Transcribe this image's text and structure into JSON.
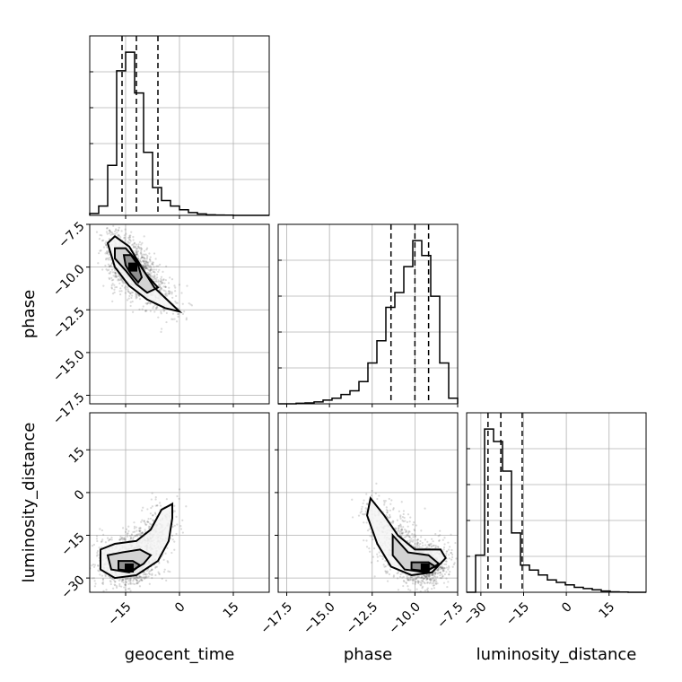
{
  "chart_data": {
    "type": "corner",
    "grid": true,
    "parameters": [
      "geocent_time",
      "phase",
      "luminosity_distance"
    ],
    "ranges": {
      "geocent_time": [
        -25,
        25
      ],
      "phase": [
        -18,
        -7.5
      ],
      "luminosity_distance": [
        -35,
        28
      ]
    },
    "ticks": {
      "geocent_time": [
        -15,
        0,
        15
      ],
      "phase": [
        -17.5,
        -15.0,
        -12.5,
        -10.0,
        -7.5
      ],
      "luminosity_distance": [
        -30,
        -15,
        0,
        15
      ]
    },
    "tick_labels": {
      "geocent_time": [
        "−15",
        "0",
        "15"
      ],
      "phase": [
        "−17.5",
        "−15.0",
        "−12.5",
        "−10.0",
        "−7.5"
      ],
      "luminosity_distance": [
        "−30",
        "−15",
        "0",
        "15"
      ]
    },
    "histograms": [
      {
        "parameter": "geocent_time",
        "bin_edges": [
          -25,
          -22.5,
          -20,
          -17.5,
          -15,
          -12.5,
          -10,
          -7.5,
          -5,
          -2.5,
          0,
          2.5,
          5,
          7.5,
          10,
          12.5,
          15,
          17.5,
          20,
          22.5,
          25
        ],
        "counts": [
          1,
          5,
          27,
          78,
          88,
          66,
          34,
          15,
          8,
          5,
          3,
          1.5,
          0.8,
          0.3,
          0.2,
          0.1,
          0,
          0,
          0,
          0
        ],
        "quantiles": [
          -16,
          -12,
          -6
        ]
      },
      {
        "parameter": "phase",
        "bin_edges": [
          -18,
          -17.475,
          -16.95,
          -16.425,
          -15.9,
          -15.375,
          -14.85,
          -14.325,
          -13.8,
          -13.275,
          -12.75,
          -12.225,
          -11.7,
          -11.175,
          -10.65,
          -10.125,
          -9.6,
          -9.075,
          -8.55,
          -8.025,
          -7.5
        ],
        "counts": [
          0,
          0,
          0.3,
          0.5,
          1,
          2,
          3,
          5,
          7,
          12,
          22,
          34,
          52,
          60,
          74,
          88,
          80,
          58,
          22,
          3
        ],
        "quantiles": [
          -11.4,
          -10.0,
          -9.2
        ]
      },
      {
        "parameter": "luminosity_distance",
        "bin_edges": [
          -35,
          -31.85,
          -28.7,
          -25.55,
          -22.4,
          -19.25,
          -16.1,
          -12.95,
          -9.8,
          -6.65,
          -3.5,
          -0.35,
          2.8,
          5.95,
          9.1,
          12.25,
          15.4,
          18.55,
          21.7,
          24.85,
          28
        ],
        "counts": [
          0,
          15,
          66,
          61,
          49,
          24,
          11,
          9,
          7,
          5,
          4,
          3,
          2,
          1.5,
          1,
          0.5,
          0.2,
          0.1,
          0,
          0
        ],
        "quantiles": [
          -27.5,
          -23,
          -15.5
        ]
      }
    ],
    "correlations": [
      {
        "x": "geocent_time",
        "y": "phase",
        "peak": [
          -13,
          -10.0
        ],
        "contour_outer": [
          [
            -20,
            -8.6
          ],
          [
            -18,
            -8.2
          ],
          [
            -14,
            -8.8
          ],
          [
            -10,
            -10.2
          ],
          [
            -7,
            -11.2
          ],
          [
            -4,
            -11.8
          ],
          [
            0,
            -12.6
          ],
          [
            -4,
            -12.4
          ],
          [
            -9,
            -11.9
          ],
          [
            -14,
            -11.1
          ],
          [
            -18,
            -10.0
          ]
        ],
        "contour_middle": [
          [
            -18,
            -8.9
          ],
          [
            -15,
            -8.9
          ],
          [
            -12,
            -9.6
          ],
          [
            -9,
            -10.5
          ],
          [
            -6,
            -11.2
          ],
          [
            -9,
            -11.5
          ],
          [
            -12,
            -11.0
          ],
          [
            -15,
            -10.2
          ],
          [
            -18,
            -9.5
          ]
        ],
        "contour_inner": [
          [
            -15.5,
            -9.3
          ],
          [
            -13.5,
            -9.3
          ],
          [
            -11.5,
            -9.9
          ],
          [
            -10.5,
            -10.6
          ],
          [
            -11.5,
            -10.9
          ],
          [
            -13.5,
            -10.4
          ],
          [
            -15,
            -9.9
          ]
        ]
      },
      {
        "x": "geocent_time",
        "y": "luminosity_distance",
        "peak": [
          -14,
          -26.5
        ],
        "contour_outer": [
          [
            -22,
            -20
          ],
          [
            -18,
            -18
          ],
          [
            -12,
            -17
          ],
          [
            -8,
            -13
          ],
          [
            -5,
            -6
          ],
          [
            -2,
            -4
          ],
          [
            -2,
            -9
          ],
          [
            -3,
            -17
          ],
          [
            -6,
            -24
          ],
          [
            -12,
            -29
          ],
          [
            -18,
            -30
          ],
          [
            -22,
            -27
          ]
        ],
        "contour_middle": [
          [
            -20,
            -22
          ],
          [
            -16,
            -21
          ],
          [
            -11,
            -20
          ],
          [
            -8,
            -22
          ],
          [
            -10,
            -25
          ],
          [
            -14,
            -28
          ],
          [
            -19,
            -27
          ]
        ],
        "contour_inner": [
          [
            -17,
            -24
          ],
          [
            -13,
            -24
          ],
          [
            -11,
            -25.5
          ],
          [
            -13,
            -27.5
          ],
          [
            -17,
            -27
          ]
        ]
      },
      {
        "x": "phase",
        "y": "luminosity_distance",
        "peak": [
          -9.4,
          -26.5
        ],
        "contour_outer": [
          [
            -12.6,
            -2
          ],
          [
            -11.8,
            -8
          ],
          [
            -11,
            -15
          ],
          [
            -10,
            -20
          ],
          [
            -8.5,
            -20
          ],
          [
            -8.2,
            -23
          ],
          [
            -9,
            -28
          ],
          [
            -10.2,
            -29
          ],
          [
            -11.4,
            -26
          ],
          [
            -12.2,
            -18
          ],
          [
            -12.8,
            -8
          ]
        ],
        "contour_middle": [
          [
            -11.3,
            -15
          ],
          [
            -10.4,
            -21
          ],
          [
            -9.2,
            -22
          ],
          [
            -8.6,
            -25
          ],
          [
            -9.4,
            -28
          ],
          [
            -10.6,
            -27
          ],
          [
            -11.3,
            -22
          ]
        ],
        "contour_inner": [
          [
            -10.2,
            -24.5
          ],
          [
            -9.2,
            -24.5
          ],
          [
            -8.8,
            -26
          ],
          [
            -9.4,
            -27.5
          ],
          [
            -10.2,
            -27
          ]
        ]
      }
    ],
    "axis_labels": {
      "bottom": [
        "geocent_time",
        "phase",
        "luminosity_distance"
      ],
      "left": [
        "phase",
        "luminosity_distance"
      ]
    }
  }
}
